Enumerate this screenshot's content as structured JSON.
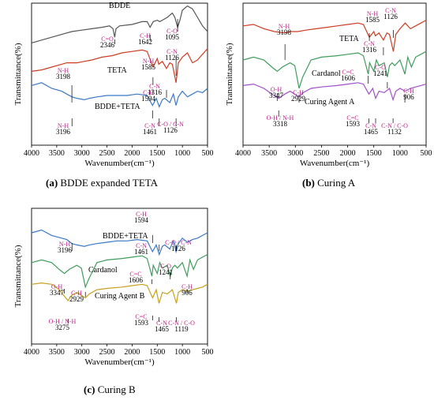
{
  "chart_data": [
    {
      "type": "line",
      "panel_label": "(a)",
      "caption": "BDDE expanded TETA",
      "xlabel": "Wavenumber(cm⁻¹)",
      "ylabel": "Transmittance(%)",
      "xlim": [
        4000,
        500
      ],
      "xticks": [
        "4000",
        "3500",
        "3000",
        "2500",
        "2000",
        "1500",
        "1000",
        "500"
      ],
      "grid": false,
      "series": [
        {
          "name": "BDDE",
          "color": "#555555",
          "x": [
            4000,
            3800,
            3600,
            3400,
            3200,
            3000,
            2800,
            2600,
            2450,
            2380,
            2346,
            2320,
            2250,
            2000,
            1800,
            1700,
            1642,
            1580,
            1500,
            1450,
            1400,
            1300,
            1200,
            1150,
            1095,
            1050,
            1000,
            900,
            800,
            700,
            600,
            500
          ],
          "y": [
            72,
            74,
            76,
            78,
            80,
            81,
            82,
            83,
            84,
            82,
            76,
            82,
            84,
            85,
            87,
            87,
            83,
            87,
            88,
            87,
            88,
            90,
            93,
            90,
            83,
            88,
            95,
            98,
            96,
            90,
            84,
            80
          ]
        },
        {
          "name": "TETA",
          "color": "#cc3d22",
          "x": [
            4000,
            3800,
            3600,
            3400,
            3300,
            3198,
            3100,
            2950,
            2800,
            2600,
            2400,
            2200,
            2000,
            1800,
            1700,
            1585,
            1500,
            1470,
            1400,
            1316,
            1250,
            1200,
            1126,
            1080,
            1000,
            900,
            800,
            700,
            600,
            500
          ],
          "y": [
            52,
            53,
            55,
            57,
            58,
            58,
            58,
            59,
            60,
            62,
            63,
            65,
            66,
            67,
            66,
            55,
            61,
            57,
            59,
            54,
            58,
            57,
            44,
            58,
            62,
            65,
            58,
            60,
            64,
            68
          ]
        },
        {
          "name": "BDDE+TETA",
          "color": "#3b78c6",
          "x": [
            4000,
            3800,
            3600,
            3400,
            3300,
            3196,
            3100,
            2950,
            2850,
            2700,
            2500,
            2300,
            2100,
            1900,
            1700,
            1594,
            1520,
            1461,
            1400,
            1350,
            1250,
            1180,
            1126,
            1080,
            1000,
            900,
            800,
            700,
            600,
            500
          ],
          "y": [
            42,
            44,
            40,
            38,
            36,
            34,
            33,
            32,
            33,
            34,
            35,
            35,
            35,
            36,
            35,
            28,
            33,
            27,
            32,
            33,
            30,
            36,
            28,
            34,
            38,
            34,
            36,
            38,
            37,
            40
          ]
        }
      ],
      "series_labels": [
        "BDDE",
        "TETA",
        "BDDE+TETA"
      ],
      "annotations": [
        {
          "text": "2346",
          "sub": "C=O",
          "x": 2346
        },
        {
          "text": "1642",
          "sub": "C-H",
          "x": 1642
        },
        {
          "text": "1095",
          "sub": "C-O",
          "x": 1095
        },
        {
          "text": "3198",
          "sub": "N-H",
          "x": 3198
        },
        {
          "text": "1585",
          "sub": "N-H",
          "x": 1585
        },
        {
          "text": "1126",
          "sub": "C-N",
          "x": 1126
        },
        {
          "text": "1316",
          "sub": "C-N",
          "x": 1316
        },
        {
          "text": "1594",
          "sub": "C-H",
          "x": 1594
        },
        {
          "text": "3196",
          "sub": "N-H",
          "x": 3196
        },
        {
          "text": "1461",
          "sub": "C-N",
          "x": 1461
        },
        {
          "text": "1126",
          "sub": "C-O / C-N",
          "x": 1126
        }
      ]
    },
    {
      "type": "line",
      "panel_label": "(b)",
      "caption": "Curing A",
      "xlabel": "Wavenumber(cm⁻¹)",
      "ylabel": "Transmittance(%)",
      "xlim": [
        4000,
        500
      ],
      "xticks": [
        "4000",
        "3500",
        "3000",
        "2500",
        "2000",
        "1500",
        "1000",
        "500"
      ],
      "grid": false,
      "series": [
        {
          "name": "TETA",
          "color": "#cc3d22",
          "x": [
            4000,
            3800,
            3600,
            3400,
            3198,
            3100,
            2950,
            2800,
            2600,
            2400,
            2200,
            2000,
            1800,
            1700,
            1585,
            1500,
            1470,
            1400,
            1316,
            1250,
            1200,
            1126,
            1080,
            1000,
            900,
            800,
            700,
            600,
            500
          ],
          "y": [
            84,
            85,
            82,
            80,
            79,
            80,
            80,
            81,
            82,
            83,
            84,
            85,
            86,
            85,
            76,
            80,
            77,
            79,
            74,
            79,
            78,
            66,
            78,
            82,
            86,
            82,
            84,
            86,
            88
          ]
        },
        {
          "name": "Cardanol",
          "color": "#3f9d5c",
          "x": [
            4000,
            3800,
            3600,
            3450,
            3347,
            3250,
            3100,
            3010,
            2929,
            2860,
            2700,
            2500,
            2200,
            2000,
            1800,
            1700,
            1606,
            1580,
            1500,
            1450,
            1400,
            1300,
            1241,
            1200,
            1150,
            1100,
            1000,
            906,
            850,
            780,
            700,
            600,
            500
          ],
          "y": [
            60,
            62,
            60,
            55,
            52,
            55,
            58,
            56,
            40,
            48,
            60,
            62,
            63,
            64,
            65,
            63,
            50,
            58,
            52,
            60,
            56,
            58,
            48,
            56,
            58,
            56,
            60,
            50,
            62,
            55,
            62,
            64,
            66
          ]
        },
        {
          "name": "Curing Agent A",
          "color": "#a050c8",
          "x": [
            4000,
            3800,
            3600,
            3450,
            3318,
            3200,
            3100,
            2929,
            2850,
            2700,
            2500,
            2200,
            2000,
            1800,
            1700,
            1593,
            1520,
            1465,
            1400,
            1300,
            1200,
            1132,
            1080,
            1000,
            900,
            800,
            700,
            600,
            500
          ],
          "y": [
            42,
            43,
            40,
            36,
            33,
            36,
            38,
            34,
            37,
            40,
            41,
            42,
            43,
            44,
            43,
            36,
            40,
            33,
            38,
            37,
            40,
            32,
            38,
            40,
            38,
            40,
            41,
            42,
            43
          ]
        }
      ],
      "series_labels": [
        "TETA",
        "Cardanol",
        "Curing Agent A"
      ],
      "annotations": [
        {
          "text": "3198",
          "sub": "N-H",
          "x": 3198
        },
        {
          "text": "1585",
          "sub": "N-H",
          "x": 1585
        },
        {
          "text": "1126",
          "sub": "C-N",
          "x": 1126
        },
        {
          "text": "1316",
          "sub": "C-N",
          "x": 1316
        },
        {
          "text": "1606",
          "sub": "C=C",
          "x": 1606
        },
        {
          "text": "1241",
          "sub": "C-O",
          "x": 1241
        },
        {
          "text": "3347",
          "sub": "O-H",
          "x": 3347
        },
        {
          "text": "2929",
          "sub": "C-H",
          "x": 2929
        },
        {
          "text": "906",
          "sub": "C-H",
          "x": 906
        },
        {
          "text": "3318",
          "sub": "O-H / N-H",
          "x": 3318
        },
        {
          "text": "1593",
          "sub": "C=C",
          "x": 1593
        },
        {
          "text": "1465",
          "sub": "C-N",
          "x": 1465
        },
        {
          "text": "1132",
          "sub": "C-N / C-O",
          "x": 1132
        }
      ]
    },
    {
      "type": "line",
      "panel_label": "(c)",
      "caption": "Curing B",
      "xlabel": "Wavenumber(cm⁻¹)",
      "ylabel": "Transmittance(%)",
      "xlim": [
        4000,
        500
      ],
      "xticks": [
        "4000",
        "3500",
        "3000",
        "2500",
        "2000",
        "1500",
        "1000",
        "500"
      ],
      "grid": false,
      "series": [
        {
          "name": "BDDE+TETA",
          "color": "#3b78c6",
          "x": [
            4000,
            3800,
            3600,
            3400,
            3300,
            3196,
            3100,
            2950,
            2850,
            2700,
            2500,
            2300,
            2100,
            1900,
            1700,
            1594,
            1520,
            1461,
            1400,
            1350,
            1250,
            1180,
            1126,
            1080,
            1000,
            900,
            800,
            700,
            600,
            500
          ],
          "y": [
            82,
            84,
            80,
            78,
            77,
            74,
            73,
            72,
            73,
            74,
            75,
            76,
            76,
            77,
            76,
            68,
            73,
            66,
            72,
            73,
            70,
            76,
            68,
            74,
            78,
            75,
            77,
            78,
            80,
            82
          ]
        },
        {
          "name": "Cardanol",
          "color": "#3f9d5c",
          "x": [
            4000,
            3800,
            3600,
            3450,
            3347,
            3250,
            3100,
            3010,
            2929,
            2860,
            2700,
            2500,
            2200,
            2000,
            1800,
            1700,
            1606,
            1580,
            1500,
            1450,
            1400,
            1300,
            1241,
            1200,
            1150,
            1100,
            1000,
            906,
            850,
            780,
            700,
            600,
            500
          ],
          "y": [
            60,
            62,
            60,
            55,
            52,
            55,
            58,
            56,
            42,
            48,
            60,
            62,
            63,
            64,
            65,
            63,
            50,
            58,
            52,
            60,
            56,
            58,
            50,
            56,
            58,
            56,
            60,
            50,
            62,
            55,
            62,
            64,
            66
          ]
        },
        {
          "name": "Curing Agent B",
          "color": "#c8a020",
          "x": [
            4000,
            3800,
            3600,
            3450,
            3275,
            3200,
            3100,
            2929,
            2850,
            2700,
            2500,
            2200,
            2000,
            1800,
            1700,
            1593,
            1520,
            1465,
            1400,
            1300,
            1200,
            1119,
            1080,
            1000,
            900,
            800,
            700,
            600,
            500
          ],
          "y": [
            44,
            45,
            44,
            40,
            32,
            36,
            38,
            34,
            37,
            40,
            41,
            42,
            43,
            44,
            43,
            34,
            40,
            30,
            38,
            37,
            40,
            30,
            38,
            40,
            39,
            40,
            41,
            42,
            44
          ]
        }
      ],
      "series_labels": [
        "BDDE+TETA",
        "Cardanol",
        "Curing Agent B"
      ],
      "annotations": [
        {
          "text": "1594",
          "sub": "C-H",
          "x": 1594
        },
        {
          "text": "3196",
          "sub": "N-H",
          "x": 3196
        },
        {
          "text": "1461",
          "sub": "C-N",
          "x": 1461
        },
        {
          "text": "1126",
          "sub": "C-O / C-N",
          "x": 1126
        },
        {
          "text": "1606",
          "sub": "C=C",
          "x": 1606
        },
        {
          "text": "1241",
          "sub": "C-O",
          "x": 1241
        },
        {
          "text": "3347",
          "sub": "O-H",
          "x": 3347
        },
        {
          "text": "2929",
          "sub": "C-H",
          "x": 2929
        },
        {
          "text": "906",
          "sub": "C-H",
          "x": 906
        },
        {
          "text": "3275",
          "sub": "O-H / N-H",
          "x": 3275
        },
        {
          "text": "1593",
          "sub": "C=C",
          "x": 1593
        },
        {
          "text": "1465",
          "sub": "C-N",
          "x": 1465
        },
        {
          "text": "1119",
          "sub": "C-N / C-O",
          "x": 1119
        }
      ]
    }
  ]
}
